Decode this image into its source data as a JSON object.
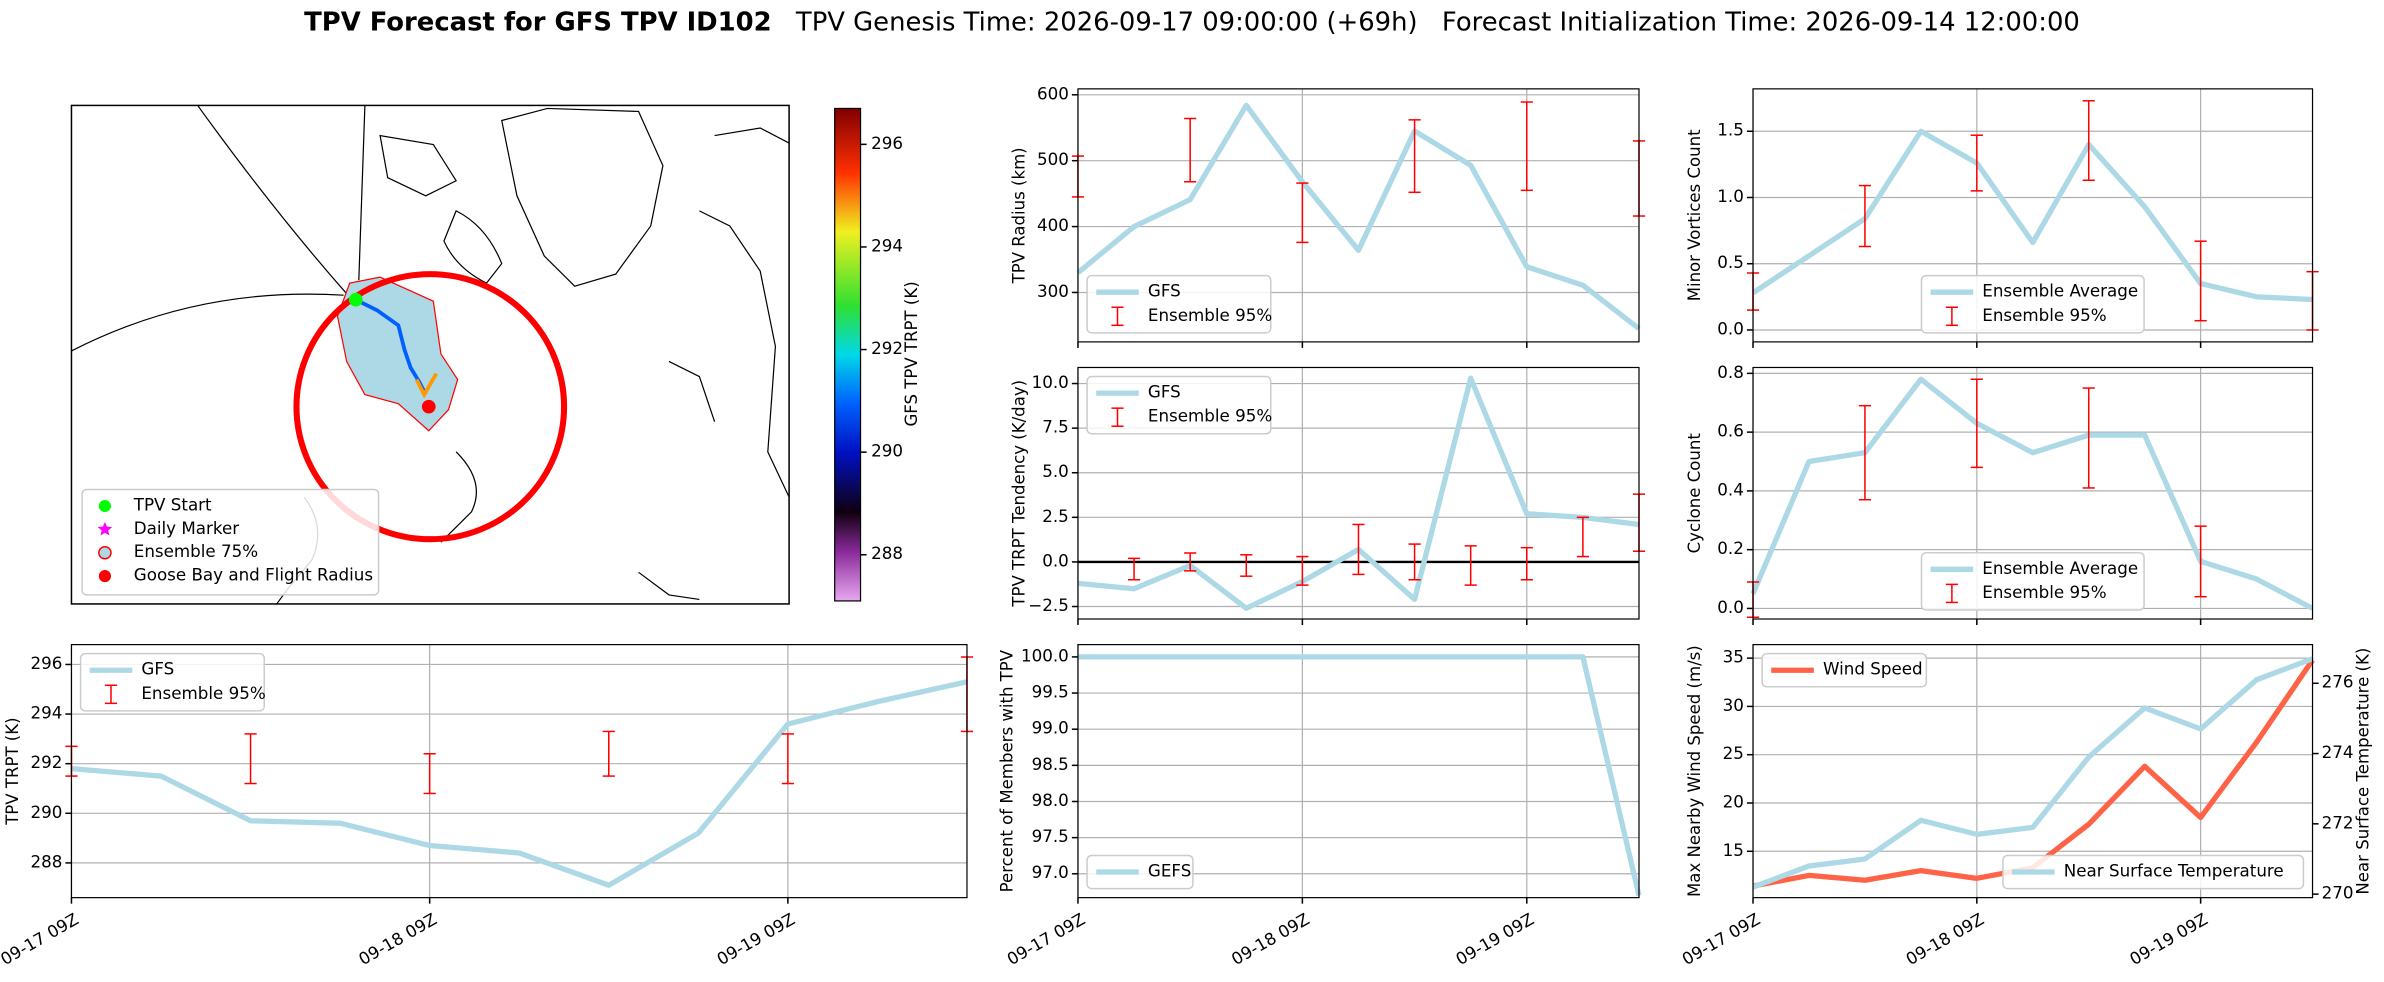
{
  "title": "TPV Forecast for GFS TPV ID102",
  "genesis": "TPV Genesis Time: 2026-09-17 09:00:00 (+69h)",
  "init": "Forecast Initialization Time: 2026-09-14 12:00:00",
  "chart_data": [
    {
      "type": "map",
      "legend": [
        {
          "label": "TPV Start",
          "color": "#00ff00",
          "marker": "circle"
        },
        {
          "label": "Daily Marker",
          "color": "#ff00ff",
          "marker": "star"
        },
        {
          "label": "Ensemble 75%",
          "color": "#add8e6",
          "edgecolor": "#ff0000",
          "marker": "circle"
        },
        {
          "label": "Goose Bay and Flight Radius",
          "color": "#ff0000",
          "marker": "circle"
        }
      ],
      "colorbar": {
        "label": "GFS TPV TRPT (K)",
        "lim": [
          287.1,
          296.7
        ],
        "ticks": [
          288,
          290,
          292,
          294,
          296
        ]
      }
    },
    {
      "type": "line",
      "ylabel": "TPV Radius (km)",
      "x": [
        "09-17 09Z",
        "09-17 15Z",
        "09-17 21Z",
        "09-18 03Z",
        "09-18 09Z",
        "09-18 15Z",
        "09-18 21Z",
        "09-19 03Z",
        "09-19 09Z",
        "09-19 15Z",
        "09-19 21Z"
      ],
      "xlim": [
        "09-17 09Z",
        "09-19 21Z"
      ],
      "xticks": [
        "09-17 09Z",
        "09-18 09Z",
        "09-19 09Z"
      ],
      "xtick_labels": false,
      "ylim": [
        225,
        609
      ],
      "yticks": [
        300,
        400,
        500,
        600
      ],
      "grid": true,
      "legend": "lower left",
      "series": [
        {
          "name": "GFS",
          "color": "#add8e6",
          "values": [
            330,
            400,
            441,
            584,
            468,
            364,
            545,
            493,
            339,
            311,
            245
          ]
        },
        {
          "name": "Ensemble 95%",
          "type": "errorbar",
          "color": "#ff0000",
          "values": [
            476,
            null,
            516,
            null,
            421,
            null,
            507,
            null,
            522,
            null,
            473
          ],
          "errors": [
            31,
            null,
            48,
            null,
            45,
            null,
            55,
            null,
            67,
            null,
            57
          ]
        }
      ]
    },
    {
      "type": "line",
      "ylabel": "Minor Vortices Count",
      "x": [
        "09-17 09Z",
        "09-17 15Z",
        "09-17 21Z",
        "09-18 03Z",
        "09-18 09Z",
        "09-18 15Z",
        "09-18 21Z",
        "09-19 03Z",
        "09-19 09Z",
        "09-19 15Z",
        "09-19 21Z"
      ],
      "xlim": [
        "09-17 09Z",
        "09-19 21Z"
      ],
      "xticks": [
        "09-17 09Z",
        "09-18 09Z",
        "09-19 09Z"
      ],
      "xtick_labels": false,
      "ylim": [
        -0.09,
        1.82
      ],
      "yticks": [
        {
          "value": 0,
          "label": "0.0"
        },
        0.5,
        {
          "value": 1,
          "label": "1.0"
        },
        1.5
      ],
      "grid": true,
      "legend": "lower center",
      "series": [
        {
          "name": "Ensemble Average",
          "color": "#add8e6",
          "values": [
            0.28,
            0.56,
            0.84,
            1.5,
            1.26,
            0.66,
            1.4,
            0.93,
            0.35,
            0.25,
            0.23
          ]
        },
        {
          "name": "Ensemble 95%",
          "type": "errorbar",
          "color": "#ff0000",
          "values": [
            0.29,
            null,
            0.86,
            null,
            1.26,
            null,
            1.43,
            null,
            0.37,
            null,
            0.22
          ],
          "errors": [
            0.14,
            null,
            0.23,
            null,
            0.21,
            null,
            0.3,
            null,
            0.3,
            null,
            0.22
          ]
        }
      ]
    },
    {
      "type": "line",
      "ylabel": "TPV TRPT Tendency (K/day)",
      "x": [
        "09-17 09Z",
        "09-17 15Z",
        "09-17 21Z",
        "09-18 03Z",
        "09-18 09Z",
        "09-18 15Z",
        "09-18 21Z",
        "09-19 03Z",
        "09-19 09Z",
        "09-19 15Z",
        "09-19 21Z"
      ],
      "xlim": [
        "09-17 09Z",
        "09-19 21Z"
      ],
      "xticks": [
        "09-17 09Z",
        "09-18 09Z",
        "09-19 09Z"
      ],
      "xtick_labels": false,
      "ylim": [
        -3.2,
        10.9
      ],
      "yticks": [
        {
          "value": -2.5,
          "label": "−2.5"
        },
        {
          "value": 0,
          "label": "0.0"
        },
        2.5,
        {
          "value": 5,
          "label": "5.0"
        },
        7.5,
        {
          "value": 10,
          "label": "10.0"
        }
      ],
      "grid": true,
      "legend": "upper left",
      "hline": 0,
      "series": [
        {
          "name": "GFS",
          "color": "#add8e6",
          "values": [
            -1.2,
            -1.5,
            -0.2,
            -2.6,
            -1.1,
            0.7,
            -2.1,
            10.3,
            2.7,
            2.5,
            2.1
          ]
        },
        {
          "name": "Ensemble 95%",
          "type": "errorbar",
          "color": "#ff0000",
          "values": [
            null,
            -0.4,
            0.0,
            -0.2,
            -0.5,
            0.7,
            0.0,
            -0.2,
            -0.1,
            1.4,
            2.2
          ],
          "errors": [
            null,
            0.6,
            0.5,
            0.6,
            0.8,
            1.4,
            1.0,
            1.1,
            0.9,
            1.1,
            1.6
          ]
        }
      ]
    },
    {
      "type": "line",
      "ylabel": "Cyclone Count",
      "x": [
        "09-17 09Z",
        "09-17 15Z",
        "09-17 21Z",
        "09-18 03Z",
        "09-18 09Z",
        "09-18 15Z",
        "09-18 21Z",
        "09-19 03Z",
        "09-19 09Z",
        "09-19 15Z",
        "09-19 21Z"
      ],
      "xlim": [
        "09-17 09Z",
        "09-19 21Z"
      ],
      "xticks": [
        "09-17 09Z",
        "09-18 09Z",
        "09-19 09Z"
      ],
      "xtick_labels": false,
      "ylim": [
        -0.036,
        0.82
      ],
      "yticks": [
        {
          "value": 0,
          "label": "0.0"
        },
        0.2,
        0.4,
        0.6,
        0.8
      ],
      "grid": true,
      "legend": "lower center",
      "series": [
        {
          "name": "Ensemble Average",
          "color": "#add8e6",
          "values": [
            0.05,
            0.5,
            0.53,
            0.78,
            0.63,
            0.53,
            0.59,
            0.59,
            0.16,
            0.1,
            0.0
          ]
        },
        {
          "name": "Ensemble 95%",
          "type": "errorbar",
          "color": "#ff0000",
          "values": [
            0.03,
            null,
            0.53,
            null,
            0.63,
            null,
            0.58,
            null,
            0.16,
            null,
            null
          ],
          "errors": [
            0.06,
            null,
            0.16,
            null,
            0.15,
            null,
            0.17,
            null,
            0.12,
            null,
            null
          ]
        }
      ]
    },
    {
      "type": "line",
      "ylabel": "TPV TRPT (K)",
      "x": [
        "09-17 09Z",
        "09-17 15Z",
        "09-17 21Z",
        "09-18 03Z",
        "09-18 09Z",
        "09-18 15Z",
        "09-18 21Z",
        "09-19 03Z",
        "09-19 09Z",
        "09-19 15Z",
        "09-19 21Z"
      ],
      "xlim": [
        "09-17 09Z",
        "09-19 21Z"
      ],
      "xticks": [
        "09-17 09Z",
        "09-18 09Z",
        "09-19 09Z"
      ],
      "ylim": [
        286.6,
        296.8
      ],
      "yticks": [
        288,
        290,
        292,
        294,
        296
      ],
      "grid": true,
      "legend": "upper left",
      "series": [
        {
          "name": "GFS",
          "color": "#add8e6",
          "values": [
            291.8,
            291.5,
            289.7,
            289.6,
            288.7,
            288.4,
            287.1,
            289.2,
            293.6,
            294.5,
            295.3
          ]
        },
        {
          "name": "Ensemble 95%",
          "type": "errorbar",
          "color": "#ff0000",
          "values": [
            292.1,
            null,
            292.2,
            null,
            291.6,
            null,
            292.4,
            null,
            292.2,
            null,
            294.8
          ],
          "errors": [
            0.6,
            null,
            1.0,
            null,
            0.8,
            null,
            0.9,
            null,
            1.0,
            null,
            1.5
          ]
        }
      ]
    },
    {
      "type": "line",
      "ylabel": "Percent of Members with TPV",
      "x": [
        "09-17 09Z",
        "09-17 15Z",
        "09-17 21Z",
        "09-18 03Z",
        "09-18 09Z",
        "09-18 15Z",
        "09-18 21Z",
        "09-19 03Z",
        "09-19 09Z",
        "09-19 15Z",
        "09-19 21Z"
      ],
      "xlim": [
        "09-17 09Z",
        "09-19 21Z"
      ],
      "xticks": [
        "09-17 09Z",
        "09-18 09Z",
        "09-19 09Z"
      ],
      "ylim": [
        96.67,
        100.17
      ],
      "yticks": [
        {
          "value": 97,
          "label": "97.0"
        },
        97.5,
        {
          "value": 98,
          "label": "98.0"
        },
        98.5,
        {
          "value": 99,
          "label": "99.0"
        },
        99.5,
        {
          "value": 100,
          "label": "100.0"
        }
      ],
      "grid": true,
      "legend": "lower left",
      "series": [
        {
          "name": "GEFS",
          "color": "#add8e6",
          "values": [
            100,
            100,
            100,
            100,
            100,
            100,
            100,
            100,
            100,
            100,
            96.7
          ]
        }
      ]
    },
    {
      "type": "line",
      "ylabel": "Max Nearby Wind Speed (m/s)",
      "ylabel_color": "#ff6347",
      "y2label": "Near Surface Temperature (K)",
      "y2label_color": "#4169e1",
      "x": [
        "09-17 09Z",
        "09-17 15Z",
        "09-17 21Z",
        "09-18 03Z",
        "09-18 09Z",
        "09-18 15Z",
        "09-18 21Z",
        "09-19 03Z",
        "09-19 09Z",
        "09-19 15Z",
        "09-19 21Z"
      ],
      "xlim": [
        "09-17 09Z",
        "09-19 21Z"
      ],
      "xticks": [
        "09-17 09Z",
        "09-18 09Z",
        "09-19 09Z"
      ],
      "ylim": [
        10.2,
        36.4
      ],
      "yticks": [
        15,
        20,
        25,
        30,
        35
      ],
      "y2lim": [
        269.9,
        277.1
      ],
      "y2ticks": [
        270,
        272,
        274,
        276
      ],
      "grid": true,
      "series": [
        {
          "name": "Wind Speed",
          "color": "#ff6347",
          "legend": "upper left",
          "values": [
            11.4,
            12.5,
            12.0,
            13.0,
            12.2,
            13.3,
            17.8,
            23.8,
            18.5,
            26.3,
            34.8
          ]
        },
        {
          "name": "Near Surface Temperature",
          "color": "#add8e6",
          "axis": "y2",
          "legend": "lower right",
          "values": [
            270.2,
            270.8,
            271.0,
            272.1,
            271.7,
            271.9,
            273.9,
            275.3,
            274.7,
            276.1,
            276.7
          ]
        }
      ]
    }
  ]
}
